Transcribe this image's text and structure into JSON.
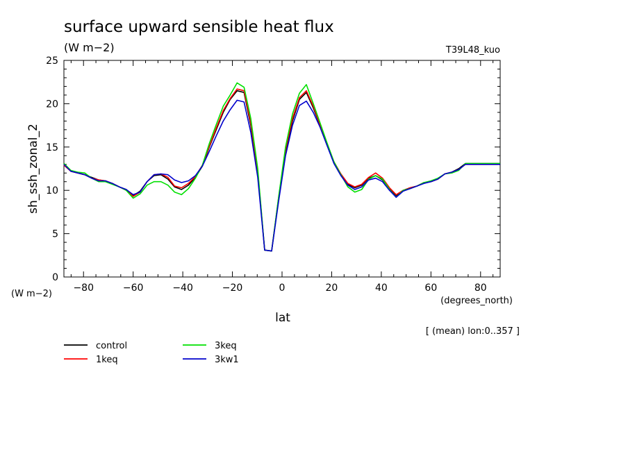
{
  "title": "surface upward sensible heat flux",
  "units": "(W m−2)",
  "run_label": "T39L48_kuo",
  "yaxis_units": "(W m−2)",
  "xaxis_units": "(degrees_north)",
  "mean_note": "[ (mean) lon:0..357 ]",
  "chart_data": {
    "type": "line",
    "title": "surface upward sensible heat flux",
    "xlabel": "lat",
    "ylabel": "sh_ssh_zonal_2",
    "xlim": [
      -87.9,
      87.9
    ],
    "ylim": [
      0,
      25
    ],
    "xticks": [
      -80,
      -60,
      -40,
      -20,
      0,
      20,
      40,
      60,
      80
    ],
    "yticks": [
      0,
      5,
      10,
      15,
      20,
      25
    ],
    "grid": false,
    "legend_position": "below-left",
    "x": [
      -87.9,
      -85.1,
      -82.3,
      -79.5,
      -76.7,
      -73.9,
      -71.2,
      -68.4,
      -65.6,
      -62.8,
      -60.0,
      -57.2,
      -54.4,
      -51.6,
      -48.8,
      -46.0,
      -43.3,
      -40.5,
      -37.7,
      -34.9,
      -32.1,
      -29.3,
      -26.5,
      -23.7,
      -20.9,
      -18.1,
      -15.3,
      -12.6,
      -9.8,
      -7.0,
      -4.2,
      -1.4,
      1.4,
      4.2,
      7.0,
      9.8,
      12.6,
      15.3,
      18.1,
      20.9,
      23.7,
      26.5,
      29.3,
      32.1,
      34.9,
      37.7,
      40.5,
      43.3,
      46.0,
      48.8,
      51.6,
      54.4,
      57.2,
      60.0,
      62.8,
      65.6,
      68.4,
      71.2,
      73.9,
      76.7,
      79.5,
      82.3,
      85.1,
      87.9
    ],
    "series": [
      {
        "name": "control",
        "color": "#000000",
        "values": [
          13.0,
          12.2,
          12.0,
          11.8,
          11.5,
          11.2,
          11.1,
          10.8,
          10.4,
          10.1,
          9.4,
          9.9,
          11.0,
          11.7,
          11.8,
          11.3,
          10.4,
          10.1,
          10.6,
          11.5,
          12.8,
          15.0,
          17.0,
          19.0,
          20.5,
          21.5,
          21.3,
          17.5,
          12.0,
          3.1,
          3.0,
          9.0,
          14.5,
          18.0,
          20.5,
          21.3,
          19.5,
          17.5,
          15.3,
          13.2,
          11.8,
          10.7,
          10.3,
          10.6,
          11.4,
          11.7,
          11.2,
          10.2,
          9.4,
          10.0,
          10.3,
          10.5,
          10.9,
          11.0,
          11.3,
          11.9,
          12.1,
          12.5,
          13.1,
          13.1,
          13.1,
          13.1,
          13.1,
          13.1
        ]
      },
      {
        "name": "1keq",
        "color": "#ff0000",
        "values": [
          12.9,
          12.2,
          12.0,
          11.8,
          11.4,
          11.2,
          11.1,
          10.8,
          10.4,
          10.0,
          9.3,
          9.8,
          11.0,
          11.8,
          11.9,
          11.5,
          10.5,
          10.3,
          10.8,
          11.6,
          12.9,
          15.1,
          17.2,
          19.2,
          20.6,
          21.7,
          21.5,
          17.8,
          12.2,
          3.1,
          3.0,
          9.1,
          14.7,
          18.3,
          20.7,
          21.5,
          19.7,
          17.6,
          15.4,
          13.3,
          11.9,
          10.8,
          10.4,
          10.7,
          11.5,
          12.0,
          11.4,
          10.3,
          9.5,
          10.0,
          10.3,
          10.5,
          10.9,
          11.0,
          11.3,
          11.9,
          12.1,
          12.4,
          13.0,
          13.0,
          13.0,
          13.0,
          13.0,
          13.0
        ]
      },
      {
        "name": "3keq",
        "color": "#00e000",
        "values": [
          13.1,
          12.3,
          12.1,
          12.0,
          11.4,
          11.0,
          11.0,
          10.7,
          10.4,
          10.0,
          9.1,
          9.6,
          10.6,
          11.0,
          11.0,
          10.6,
          9.8,
          9.5,
          10.2,
          11.4,
          12.9,
          15.4,
          17.6,
          19.7,
          21.0,
          22.4,
          21.9,
          18.3,
          12.5,
          3.1,
          3.0,
          9.2,
          15.0,
          18.8,
          21.2,
          22.2,
          20.0,
          17.8,
          15.5,
          13.3,
          11.8,
          10.4,
          9.8,
          10.1,
          11.3,
          11.7,
          11.3,
          10.1,
          9.2,
          10.0,
          10.2,
          10.5,
          10.9,
          11.1,
          11.4,
          11.9,
          12.0,
          12.3,
          13.1,
          13.1,
          13.1,
          13.1,
          13.1,
          13.1
        ]
      },
      {
        "name": "3kw1",
        "color": "#0000cc",
        "values": [
          13.0,
          12.2,
          12.0,
          11.8,
          11.4,
          11.1,
          11.1,
          10.8,
          10.4,
          10.1,
          9.5,
          9.8,
          11.0,
          11.8,
          11.9,
          11.8,
          11.2,
          10.9,
          11.1,
          11.7,
          12.8,
          14.5,
          16.3,
          18.0,
          19.3,
          20.4,
          20.2,
          16.7,
          11.5,
          3.1,
          3.0,
          8.7,
          14.0,
          17.5,
          19.8,
          20.3,
          19.0,
          17.3,
          15.2,
          13.1,
          11.7,
          10.6,
          10.1,
          10.4,
          11.2,
          11.4,
          11.0,
          10.0,
          9.2,
          9.9,
          10.2,
          10.5,
          10.8,
          11.0,
          11.3,
          11.9,
          12.1,
          12.4,
          13.0,
          13.0,
          13.0,
          13.0,
          13.0,
          13.0
        ]
      }
    ]
  }
}
